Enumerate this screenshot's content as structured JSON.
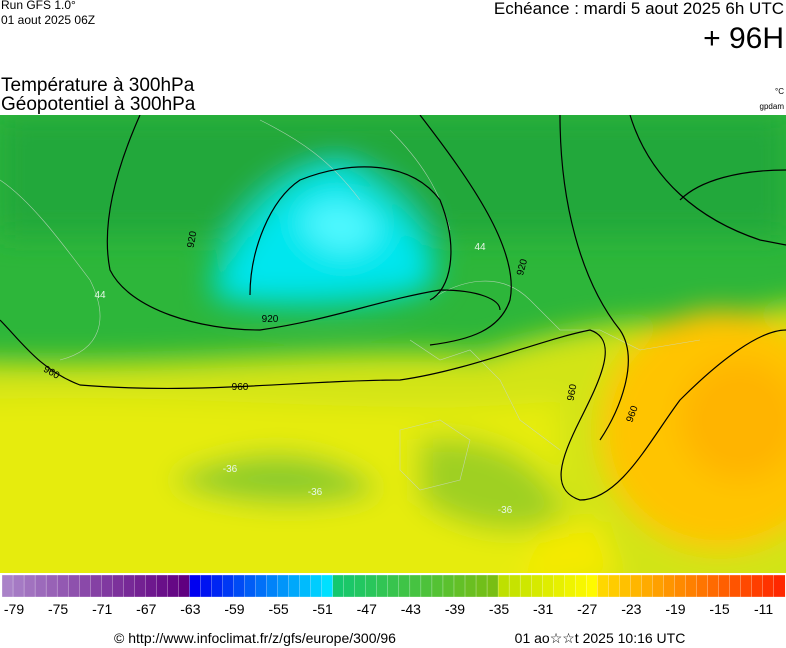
{
  "header": {
    "run": "Run GFS 1.0°",
    "run_time": "01 aout 2025 06Z",
    "echeance": "Echéance : mardi 5 aout 2025 6h UTC",
    "lead": "+ 96H",
    "title_1": "Température à 300hPa",
    "title_2": "Géopotentiel à 300hPa",
    "unit_temp": "°C",
    "unit_geo": "gpdam"
  },
  "map": {
    "contour_labels": [
      "920",
      "920",
      "920",
      "960",
      "960",
      "960",
      "960"
    ],
    "temperature_labels": [
      "44",
      "44",
      "-36",
      "-36",
      "-36"
    ]
  },
  "colorbar": {
    "ticks": [
      -79,
      -75,
      -71,
      -67,
      -63,
      -59,
      -55,
      -51,
      -47,
      -43,
      -39,
      -35,
      -31,
      -27,
      -23,
      -19,
      -15,
      -11
    ]
  },
  "footer": {
    "source": "© http://www.infoclimat.fr/z/gfs/europe/300/96",
    "timestamp": "01 ao☆☆t 2025 10:16 UTC"
  }
}
